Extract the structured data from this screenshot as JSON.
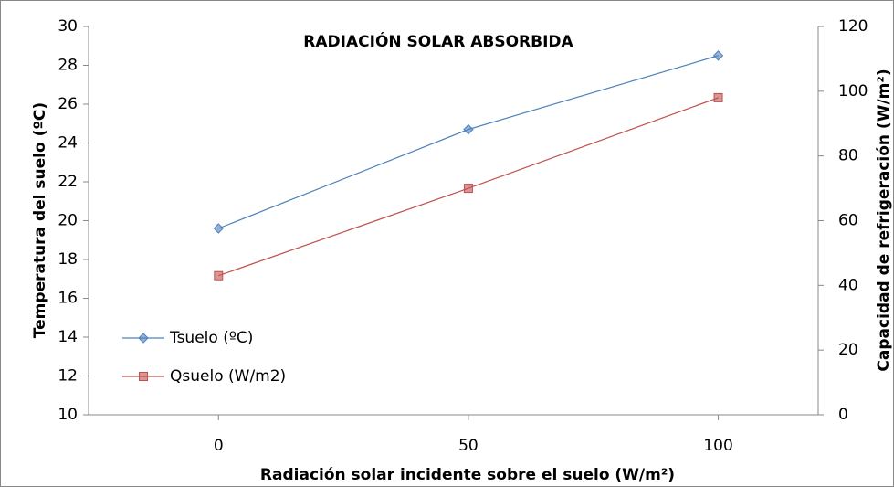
{
  "chart_data": {
    "type": "line",
    "title": "RADIACIÓN SOLAR ABSORBIDA",
    "xlabel": "Radiación solar incidente sobre el suelo (W/m²)",
    "ylabel": "Temperatura del suelo (ºC)",
    "y2label": "Capacidad de refrigeración (W/m²)",
    "x": [
      0,
      50,
      100
    ],
    "xlim": [
      -26,
      120
    ],
    "xticks": [
      0,
      50,
      100
    ],
    "ylim": [
      10,
      30
    ],
    "yticks": [
      10,
      12,
      14,
      16,
      18,
      20,
      22,
      24,
      26,
      28,
      30
    ],
    "y2lim": [
      0,
      120
    ],
    "y2ticks": [
      0,
      20,
      40,
      60,
      80,
      100,
      120
    ],
    "legend": "left",
    "series": [
      {
        "name": "Tsuelo (ºC)",
        "color": "#4f81bd",
        "marker": "diamond",
        "values": [
          19.6,
          24.7,
          28.5
        ]
      },
      {
        "name": "Qsuelo (W/m2)",
        "color": "#c0504d",
        "marker": "square",
        "axis": "y2",
        "values": [
          43,
          70,
          98
        ]
      }
    ]
  }
}
